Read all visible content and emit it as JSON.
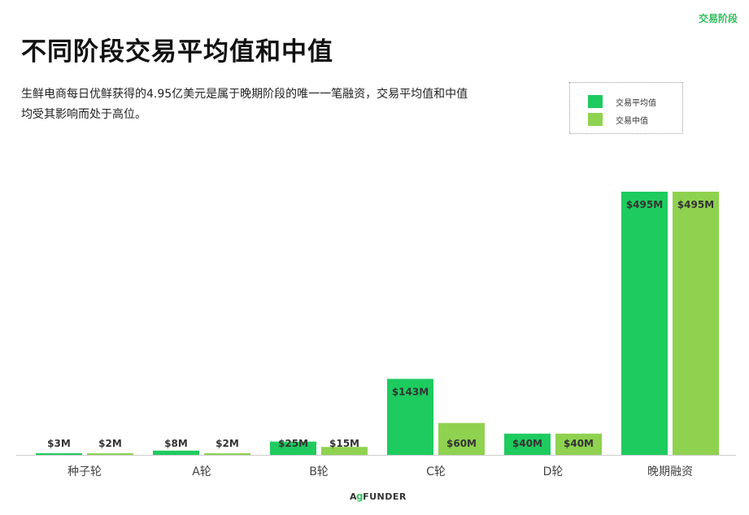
{
  "header": {
    "section_tag": "交易阶段",
    "title": "不同阶段交易平均值和中值",
    "subtitle": "生鲜电商每日优鲜获得的4.95亿美元是属于晚期阶段的唯一一笔融资，交易平均值和中值均受其影响而处于高位。"
  },
  "logo": {
    "text_left": "A",
    "text_leaf": "g",
    "text_right": "FUNDER"
  },
  "colors": {
    "mean": "#1ecb5f",
    "median": "#8fd24f",
    "baseline": "#cccccc",
    "tag": "#2fbf5b"
  },
  "chart_data": {
    "type": "bar",
    "categories": [
      "种子轮",
      "A轮",
      "B轮",
      "C轮",
      "D轮",
      "晚期融资"
    ],
    "series": [
      {
        "name": "交易平均值",
        "values": [
          3,
          8,
          25,
          143,
          40,
          495
        ],
        "labels": [
          "$3M",
          "$8M",
          "$25M",
          "$143M",
          "$40M",
          "$495M"
        ]
      },
      {
        "name": "交易中值",
        "values": [
          2,
          2,
          15,
          60,
          40,
          495
        ],
        "labels": [
          "$2M",
          "$2M",
          "$15M",
          "$60M",
          "$40M",
          "$495M"
        ]
      }
    ],
    "unit": "$M",
    "ylim": [
      0,
      495
    ],
    "grid": false,
    "legend": "top-right"
  }
}
